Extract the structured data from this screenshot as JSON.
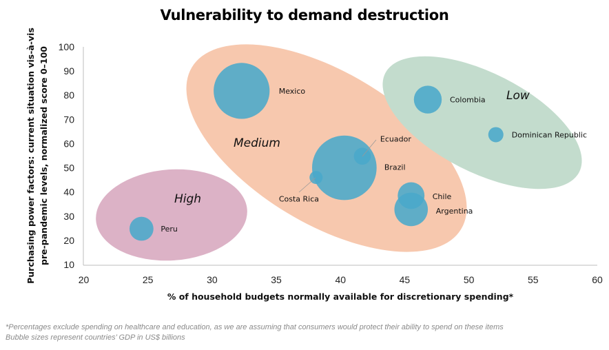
{
  "chart_data": {
    "type": "bubble",
    "title": "Vulnerability to demand destruction",
    "xlabel": "% of household budgets normally available for discretionary spending*",
    "ylabel": "Purchasing power factors: current situation vis-à-vis pre-pandemic levels, normalized score 0–100",
    "xlim": [
      20,
      60
    ],
    "ylim": [
      10,
      100
    ],
    "xticks": [
      "20",
      "25",
      "30",
      "35",
      "40",
      "45",
      "50",
      "55",
      "60"
    ],
    "yticks": [
      "10",
      "20",
      "30",
      "40",
      "50",
      "60",
      "70",
      "80",
      "90",
      "100"
    ],
    "grid": false,
    "bubble_color": "#4aa8cb",
    "points": [
      {
        "label": "Mexico",
        "x": 32.3,
        "y": 81.8,
        "size": 1090
      },
      {
        "label": "Brazil",
        "x": 40.3,
        "y": 50,
        "size": 1450
      },
      {
        "label": "Ecuador",
        "x": 41.7,
        "y": 54.8,
        "size": 100
      },
      {
        "label": "Costa Rica",
        "x": 38.1,
        "y": 46,
        "size": 60
      },
      {
        "label": "Chile",
        "x": 45.5,
        "y": 38.5,
        "size": 250
      },
      {
        "label": "Argentina",
        "x": 45.5,
        "y": 32.8,
        "size": 390
      },
      {
        "label": "Peru",
        "x": 24.5,
        "y": 24.8,
        "size": 200
      },
      {
        "label": "Colombia",
        "x": 46.8,
        "y": 78.2,
        "size": 270
      },
      {
        "label": "Dominican Republic",
        "x": 52.1,
        "y": 63.7,
        "size": 80
      }
    ],
    "zones": [
      {
        "label": "High",
        "color": "#dcb2c6"
      },
      {
        "label": "Medium",
        "color": "#f7c8ae"
      },
      {
        "label": "Low",
        "color": "#c3dccd"
      }
    ]
  },
  "footnotes": [
    "*Percentages exclude spending on healthcare and education, as we are assuming that consumers would protect their ability to spend on these items",
    "Bubble sizes represent countries’ GDP in US$ billions"
  ]
}
